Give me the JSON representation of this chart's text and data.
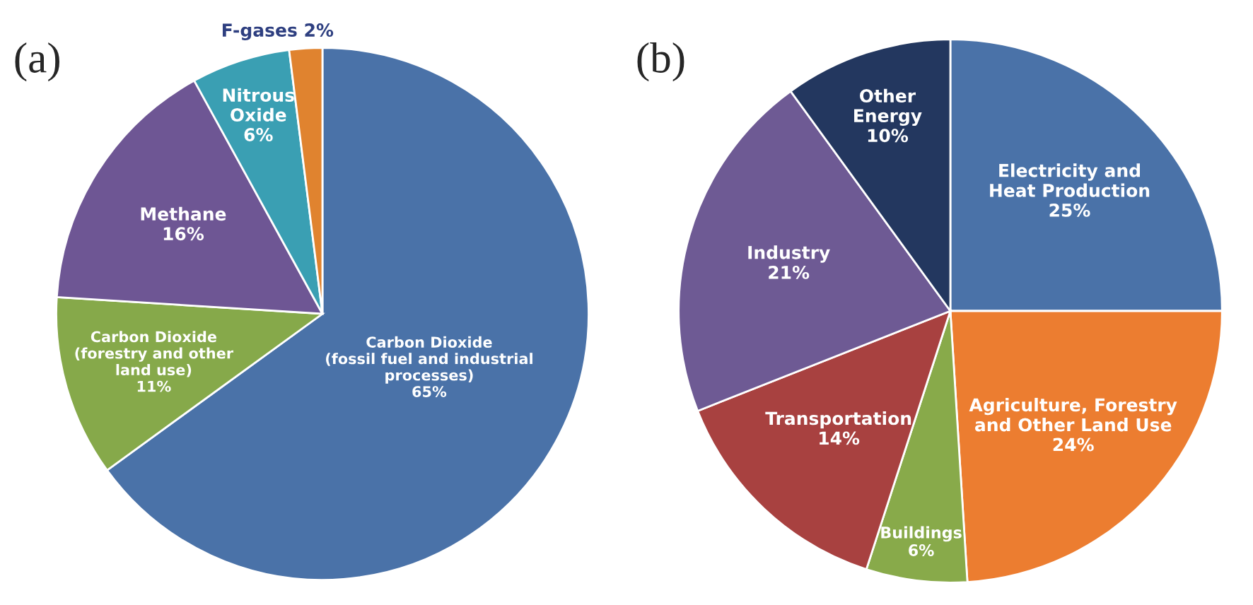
{
  "chart_data": [
    {
      "type": "pie",
      "title": "(a)",
      "categories": [
        "Carbon Dioxide\n(fossil fuel and industrial\nprocesses)",
        "Carbon Dioxide\n(forestry and other\nland use)",
        "Methane",
        "Nitrous\nOxide",
        "F-gases"
      ],
      "values": [
        65,
        11,
        16,
        6,
        2
      ],
      "value_labels": [
        "65%",
        "11%",
        "16%",
        "6%",
        "2%"
      ],
      "colors": [
        "#4a72a8",
        "#86a94a",
        "#6e5694",
        "#3a9fb3",
        "#e0832f"
      ]
    },
    {
      "type": "pie",
      "title": "(b)",
      "categories": [
        "Electricity and\nHeat Production",
        "Agriculture, Forestry\nand Other Land Use",
        "Buildings",
        "Transportation",
        "Industry",
        "Other\nEnergy"
      ],
      "values": [
        25,
        24,
        6,
        14,
        21,
        10
      ],
      "value_labels": [
        "25%",
        "24%",
        "6%",
        "14%",
        "21%",
        "10%"
      ],
      "colors": [
        "#4a72a8",
        "#ec7d30",
        "#88aa4a",
        "#a84140",
        "#6e5a94",
        "#23375f"
      ]
    }
  ]
}
